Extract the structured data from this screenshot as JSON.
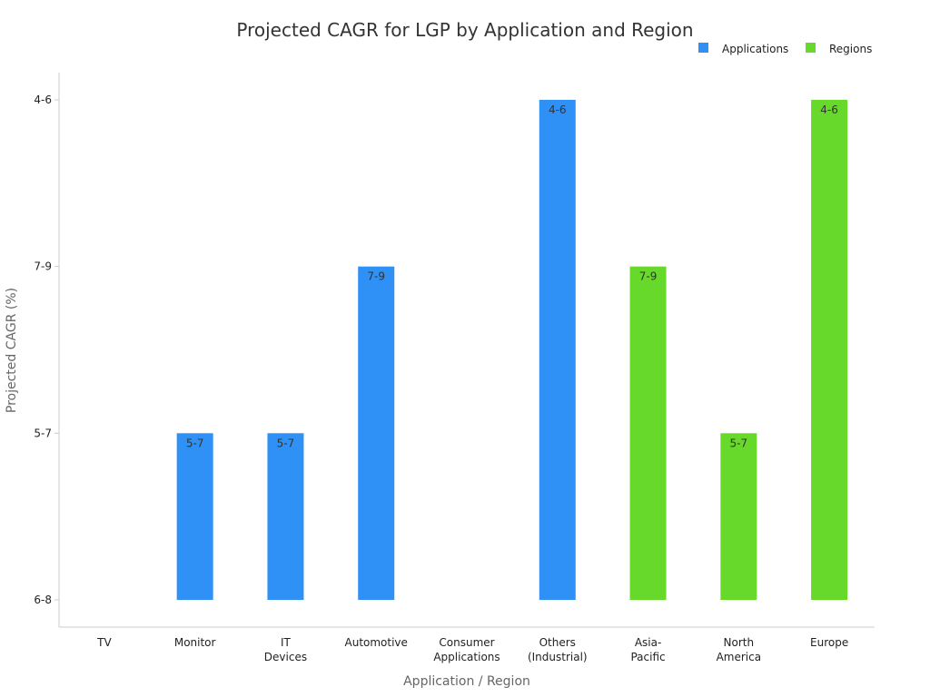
{
  "chart_data": {
    "type": "bar",
    "title": "Projected CAGR for LGP by Application and Region",
    "xlabel": "Application / Region",
    "ylabel": "Projected CAGR (%)",
    "y_ticks": [
      "6-8",
      "5-7",
      "7-9",
      "4-6"
    ],
    "categories": [
      [
        "TV"
      ],
      [
        "Monitor"
      ],
      [
        "IT",
        "Devices"
      ],
      [
        "Automotive"
      ],
      [
        "Consumer",
        "Applications"
      ],
      [
        "Others",
        "(Industrial)"
      ],
      [
        "Asia-",
        "Pacific"
      ],
      [
        "North",
        "America"
      ],
      [
        "Europe"
      ]
    ],
    "series": [
      {
        "name": "Applications",
        "color": "#2f90f5",
        "values": [
          null,
          "5-7",
          "5-7",
          "7-9",
          null,
          "4-6",
          null,
          null,
          null
        ]
      },
      {
        "name": "Regions",
        "color": "#66d92a",
        "values": [
          null,
          null,
          null,
          null,
          null,
          null,
          "7-9",
          "5-7",
          "4-6"
        ]
      }
    ],
    "legend_position": "top-right",
    "grid": false
  }
}
